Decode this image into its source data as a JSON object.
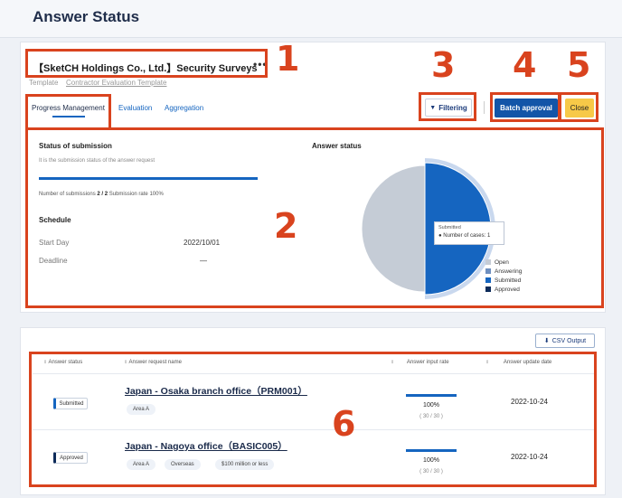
{
  "page": {
    "title": "Answer Status"
  },
  "survey": {
    "title": "【SketCH Holdings Co., Ltd.】Security Surveys",
    "more": "•••",
    "template_label": "Template",
    "template_link": "Contractor Evaluation Template"
  },
  "tabs": [
    {
      "label": "Progress Management",
      "active": true
    },
    {
      "label": "Evaluation",
      "active": false
    },
    {
      "label": "Aggregation",
      "active": false
    }
  ],
  "toolbar": {
    "filter_label": "Filtering",
    "batch_label": "Batch approval",
    "close_label": "Close"
  },
  "submission": {
    "title": "Status of submission",
    "subtitle": "It is the submission status of the answer request",
    "progress": 1.0,
    "count_label": "Number of submissions",
    "count_value": "2 / 2",
    "rate_label": "Submission rate",
    "rate_value": "100%"
  },
  "schedule": {
    "title": "Schedule",
    "start_label": "Start Day",
    "start_value": "2022/10/01",
    "deadline_label": "Deadline",
    "deadline_value": "—"
  },
  "answer_status": {
    "title": "Answer status",
    "tooltip_header": "Submitted",
    "tooltip_row": "Number of cases: 1"
  },
  "chart_data": {
    "type": "pie",
    "title": "Answer status",
    "categories": [
      "Open",
      "Answering",
      "Submitted",
      "Approved"
    ],
    "values": [
      0,
      0,
      1,
      1
    ],
    "colors": [
      "#c5ccd6",
      "#6e8fbf",
      "#1565c0",
      "#0d2b5a"
    ],
    "displayed_colors": [
      "#c5ccd6",
      "#6e8fbf",
      "#1565c0",
      "#c5ccd6"
    ],
    "legend_position": "bottom-right"
  },
  "csv": {
    "label": "CSV Output"
  },
  "table": {
    "headers": [
      "Answer status",
      "Answer request name",
      "Answer input rate",
      "Answer update date"
    ],
    "sort_glyph": "⇕",
    "rows": [
      {
        "status": "Submitted",
        "name": "Japan - Osaka branch office（PRM001）",
        "tags": [
          "Area A"
        ],
        "rate": 1.0,
        "rate_pct": "100%",
        "rate_frac": "( 30 / 30 )",
        "date": "2022-10-24"
      },
      {
        "status": "Approved",
        "name": "Japan - Nagoya office（BASIC005）",
        "tags": [
          "Area A",
          "Overseas",
          "$100 million or less"
        ],
        "rate": 1.0,
        "rate_pct": "100%",
        "rate_frac": "( 30 / 30 )",
        "date": "2022-10-24"
      }
    ]
  },
  "callouts": [
    "1",
    "2",
    "3",
    "4",
    "5",
    "6"
  ],
  "colors": {
    "accent": "#1565c0",
    "callout": "#d9431e",
    "close": "#f7c948",
    "batch": "#1355a8"
  }
}
